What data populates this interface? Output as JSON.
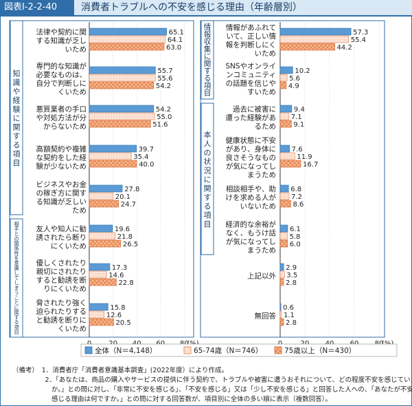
{
  "header": {
    "label": "図表Ⅰ-2-2-40",
    "title": "消費者トラブルへの不安を感じる理由（年齢層別）"
  },
  "colors": {
    "s0": "#5b9bd5",
    "s1": "#ffffff",
    "s2": "#f6b58c"
  },
  "chart_data": [
    {
      "type": "bar",
      "orientation": "horizontal",
      "xlim": [
        0,
        80
      ],
      "xticks": [
        0,
        20,
        40,
        60,
        80
      ],
      "xunit": "(%)",
      "groups": [
        {
          "label": "知識や経験に関する項目",
          "rows": [
            0,
            1,
            2,
            3,
            4
          ]
        },
        {
          "label": "相手との関係性を意識してしまうことに関する項目",
          "rows": [
            5,
            6,
            7
          ]
        }
      ],
      "categories": [
        "法律や契約に関する知識が乏しいため",
        "専門的な知識が必要なものは、自分で判断しにくいため",
        "悪質業者の手口や対処方法が分からないため",
        "高額契約や複雑な契約をした経験が少ないため",
        "ビジネスやお金の稼ぎ方に関する知識が乏しいため",
        "友人や知人に勧誘されたら断りにくいため",
        "優しくされたり親切にされたりすると勧誘を断りにくいため",
        "脅されたり強く迫られたりすると勧誘を断りにくいため"
      ],
      "category_lines": [
        [
          "法律や契約に関",
          "する知識が乏し",
          "いため"
        ],
        [
          "専門的な知識が",
          "必要なものは、",
          "自分で判断しに",
          "くいため"
        ],
        [
          "悪質業者の手口",
          "や対処方法が分",
          "からないため"
        ],
        [
          "高額契約や複雑",
          "な契約をした経",
          "験が少ないため"
        ],
        [
          "ビジネスやお金",
          "の稼ぎ方に関す",
          "る知識が乏しい",
          "ため"
        ],
        [
          "友人や知人に勧",
          "誘されたら断り",
          "にくいため"
        ],
        [
          "優しくされたり",
          "親切にされたり",
          "すると勧誘を断",
          "りにくいため"
        ],
        [
          "脅されたり強く",
          "迫られたりする",
          "と勧誘を断りに",
          "くいため"
        ]
      ],
      "series": [
        {
          "name": "全体（N＝4,148）",
          "values": [
            65.1,
            55.7,
            54.2,
            39.7,
            27.8,
            19.6,
            17.3,
            15.8
          ]
        },
        {
          "name": "65-74歳（N＝746）",
          "values": [
            64.1,
            55.6,
            55.0,
            35.4,
            20.1,
            21.8,
            14.6,
            12.6
          ]
        },
        {
          "name": "75歳以上（N＝430）",
          "values": [
            63.0,
            54.2,
            51.6,
            40.0,
            24.7,
            26.5,
            22.8,
            20.5
          ]
        }
      ]
    },
    {
      "type": "bar",
      "orientation": "horizontal",
      "xlim": [
        0,
        80
      ],
      "xticks": [
        0,
        20,
        40,
        60,
        80
      ],
      "xunit": "(%)",
      "groups": [
        {
          "label": "情報収集に関する項目",
          "rows": [
            0,
            1
          ]
        },
        {
          "label": "本人の状況に関する項目",
          "rows": [
            2,
            3,
            4,
            5
          ]
        }
      ],
      "categories": [
        "情報があふれていて、正しい情報を判断しにくいため",
        "SNSやオンラインコミュニティの話題を信じやすいため",
        "過去に被害に遭った経験があるため",
        "健康状態に不安があり、身体に良さそうなものが気になってしまうため",
        "相談相手や、助けを求める人がいないため",
        "経済的な余裕がなく、もうけ話が気になってしまうため",
        "上記以外",
        "無回答"
      ],
      "category_lines": [
        [
          "情報があふれて",
          "いて、正しい情",
          "報を判断しにく",
          "いため"
        ],
        [
          "SNSやオンライ",
          "ンコミュニティ",
          "の話題を信じや",
          "すいため"
        ],
        [
          "過去に被害に",
          "遭った経験があ",
          "るため"
        ],
        [
          "健康状態に不安",
          "があり、身体に",
          "良さそうなもの",
          "が気になってし",
          "まうため"
        ],
        [
          "相談相手や、助",
          "けを求める人が",
          "いないため"
        ],
        [
          "経済的な余裕が",
          "なく、もうけ話",
          "が気になってし",
          "まうため"
        ],
        [
          "上記以外"
        ],
        [
          "無回答"
        ]
      ],
      "series": [
        {
          "name": "全体（N＝4,148）",
          "values": [
            57.3,
            10.2,
            9.4,
            7.6,
            6.8,
            6.1,
            2.9,
            0.6
          ]
        },
        {
          "name": "65-74歳（N＝746）",
          "values": [
            55.4,
            5.6,
            7.1,
            11.9,
            7.2,
            5.8,
            3.5,
            1.1
          ]
        },
        {
          "name": "75歳以上（N＝430）",
          "values": [
            44.2,
            4.9,
            9.1,
            16.7,
            8.6,
            6.0,
            2.8,
            2.8
          ]
        }
      ]
    }
  ],
  "notes": [
    "（備考）　1．消費者庁「消費者意識基本調査」(2022年度）により作成。",
    "　　　　　2．「あなたは、商品の購入やサービスの提供に伴う契約で、トラブルや被害に遭うおそれについて、どの程度不安を感じています",
    "　　　　　　か。」との問に対し、「非常に不安を感じる」、「不安を感じる」又は「少し不安を感じる」と回答した人への、「あなたが不安に",
    "　　　　　　感じる理由は何ですか。」との問に対する回答数が、項目別に全体の多い順に表示（複数回答）。"
  ]
}
